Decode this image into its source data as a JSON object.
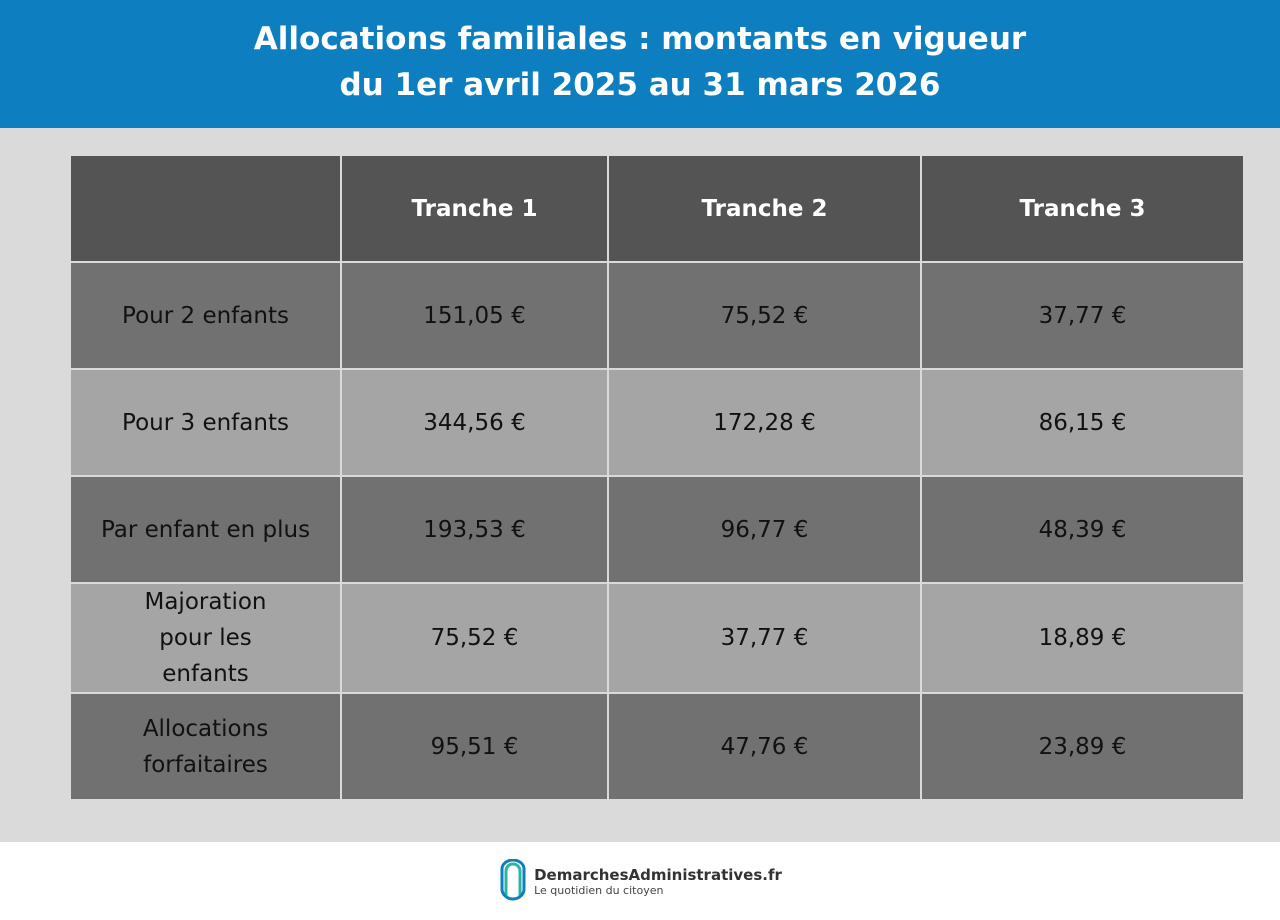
{
  "title": {
    "line1": "Allocations familiales : montants en vigueur",
    "line2": "du 1er avril 2025 au 31 mars 2026"
  },
  "table": {
    "headers": [
      "",
      "Tranche 1",
      "Tranche 2",
      "Tranche 3"
    ],
    "rows": [
      {
        "label": "Pour 2 enfants",
        "values": [
          "151,05 €",
          "75,52 €",
          "37,77 €"
        ]
      },
      {
        "label": "Pour 3 enfants",
        "values": [
          "344,56 €",
          "172,28 €",
          "86,15 €"
        ]
      },
      {
        "label": "Par enfant en plus",
        "values": [
          "193,53 €",
          "96,77 €",
          "48,39 €"
        ]
      },
      {
        "label": "Majoration pour les enfants",
        "values": [
          "75,52 €",
          "37,77 €",
          "18,89 €"
        ]
      },
      {
        "label": "Allocations forfaitaires",
        "values": [
          "95,51 €",
          "47,76 €",
          "23,89 €"
        ]
      }
    ]
  },
  "footer": {
    "brand": "DemarchesAdministratives.fr",
    "tagline": "Le quotidien du citoyen"
  },
  "colors": {
    "header": "#0d7fc0",
    "table_header": "#545454",
    "row_dark": "#717171",
    "row_light": "#a5a5a5"
  }
}
